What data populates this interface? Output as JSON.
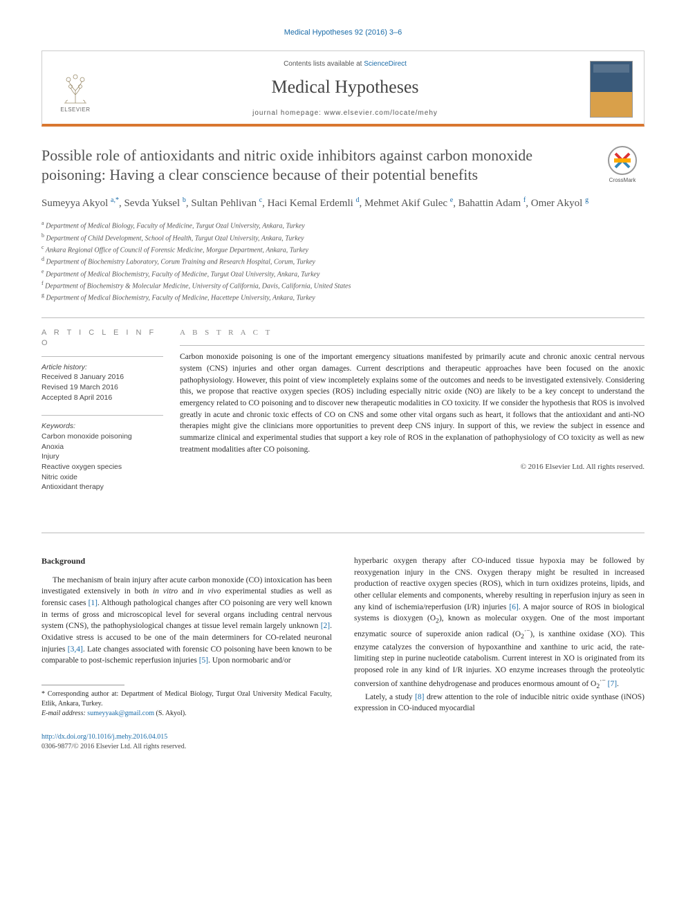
{
  "running_head": "Medical Hypotheses 92 (2016) 3–6",
  "masthead": {
    "contents_prefix": "Contents lists available at ",
    "contents_link": "ScienceDirect",
    "journal": "Medical Hypotheses",
    "homepage_prefix": "journal homepage: ",
    "homepage": "www.elsevier.com/locate/mehy",
    "publisher_label": "ELSEVIER"
  },
  "colors": {
    "accent_orange": "#d97730",
    "link_blue": "#1a6ba8",
    "text_gray": "#525252"
  },
  "title": "Possible role of antioxidants and nitric oxide inhibitors against carbon monoxide poisoning: Having a clear conscience because of their potential benefits",
  "crossmark_label": "CrossMark",
  "authors_html": "Sumeyya Akyol <sup>a,*</sup>, Sevda Yuksel <sup>b</sup>, Sultan Pehlivan <sup>c</sup>, Haci Kemal Erdemli <sup>d</sup>, Mehmet Akif Gulec <sup>e</sup>, Bahattin Adam <sup>f</sup>, Omer Akyol <sup>g</sup>",
  "affiliations": [
    {
      "key": "a",
      "text": "Department of Medical Biology, Faculty of Medicine, Turgut Ozal University, Ankara, Turkey"
    },
    {
      "key": "b",
      "text": "Department of Child Development, School of Health, Turgut Ozal University, Ankara, Turkey"
    },
    {
      "key": "c",
      "text": "Ankara Regional Office of Council of Forensic Medicine, Morgue Department, Ankara, Turkey"
    },
    {
      "key": "d",
      "text": "Department of Biochemistry Laboratory, Corum Training and Research Hospital, Corum, Turkey"
    },
    {
      "key": "e",
      "text": "Department of Medical Biochemistry, Faculty of Medicine, Turgut Ozal University, Ankara, Turkey"
    },
    {
      "key": "f",
      "text": "Department of Biochemistry & Molecular Medicine, University of California, Davis, California, United States"
    },
    {
      "key": "g",
      "text": "Department of Medical Biochemistry, Faculty of Medicine, Hacettepe University, Ankara, Turkey"
    }
  ],
  "article_info": {
    "head": "A R T I C L E   I N F O",
    "history_label": "Article history:",
    "received": "Received 8 January 2016",
    "revised": "Revised 19 March 2016",
    "accepted": "Accepted 8 April 2016",
    "keywords_label": "Keywords:",
    "keywords": [
      "Carbon monoxide poisoning",
      "Anoxia",
      "Injury",
      "Reactive oxygen species",
      "Nitric oxide",
      "Antioxidant therapy"
    ]
  },
  "abstract": {
    "head": "A B S T R A C T",
    "body": "Carbon monoxide poisoning is one of the important emergency situations manifested by primarily acute and chronic anoxic central nervous system (CNS) injuries and other organ damages. Current descriptions and therapeutic approaches have been focused on the anoxic pathophysiology. However, this point of view incompletely explains some of the outcomes and needs to be investigated extensively. Considering this, we propose that reactive oxygen species (ROS) including especially nitric oxide (NO) are likely to be a key concept to understand the emergency related to CO poisoning and to discover new therapeutic modalities in CO toxicity. If we consider the hypothesis that ROS is involved greatly in acute and chronic toxic effects of CO on CNS and some other vital organs such as heart, it follows that the antioxidant and anti-NO therapies might give the clinicians more opportunities to prevent deep CNS injury. In support of this, we review the subject in essence and summarize clinical and experimental studies that support a key role of ROS in the explanation of pathophysiology of CO toxicity as well as new treatment modalities after CO poisoning.",
    "copyright": "© 2016 Elsevier Ltd. All rights reserved."
  },
  "body": {
    "section_head": "Background",
    "col1_html": "The mechanism of brain injury after acute carbon monoxide (CO) intoxication has been investigated extensively in both <i>in vitro</i> and <i>in vivo</i> experimental studies as well as forensic cases <span class=\"cite\">[1]</span>. Although pathological changes after CO poisoning are very well known in terms of gross and microscopical level for several organs including central nervous system (CNS), the pathophysiological changes at tissue level remain largely unknown <span class=\"cite\">[2]</span>. Oxidative stress is accused to be one of the main determiners for CO-related neuronal injuries <span class=\"cite\">[3,4]</span>. Late changes associated with forensic CO poisoning have been known to be comparable to post-ischemic reperfusion injuries <span class=\"cite\">[5]</span>. Upon normobaric and/or",
    "col2_p1_html": "hyperbaric oxygen therapy after CO-induced tissue hypoxia may be followed by reoxygenation injury in the CNS. Oxygen therapy might be resulted in increased production of reactive oxygen species (ROS), which in turn oxidizes proteins, lipids, and other cellular elements and components, whereby resulting in reperfusion injury as seen in any kind of ischemia/reperfusion (I/R) injuries <span class=\"cite\">[6]</span>. A major source of ROS in biological systems is dioxygen (O<sub>2</sub>), known as molecular oxygen. One of the most important enzymatic source of superoxide anion radical (O<sub>2</sub><sup>·−</sup>), is xanthine oxidase (XO). This enzyme catalyzes the conversion of hypoxanthine and xanthine to uric acid, the rate-limiting step in purine nucleotide catabolism. Current interest in XO is originated from its proposed role in any kind of I/R injuries. XO enzyme increases through the proteolytic conversion of xanthine dehydrogenase and produces enormous amount of O<sub>2</sub><sup>·−</sup> <span class=\"cite\">[7]</span>.",
    "col2_p2_html": "Lately, a study <span class=\"cite\">[8]</span> drew attention to the role of inducible nitric oxide synthase (iNOS) expression in CO-induced myocardial"
  },
  "footnote": {
    "corr": "* Corresponding author at: Department of Medical Biology, Turgut Ozal University Medical Faculty, Etlik, Ankara, Turkey.",
    "email_label": "E-mail address:",
    "email": "sumeyyaak@gmail.com",
    "email_person": "(S. Akyol)."
  },
  "footer": {
    "doi": "http://dx.doi.org/10.1016/j.mehy.2016.04.015",
    "issn_line": "0306-9877/© 2016 Elsevier Ltd. All rights reserved."
  }
}
